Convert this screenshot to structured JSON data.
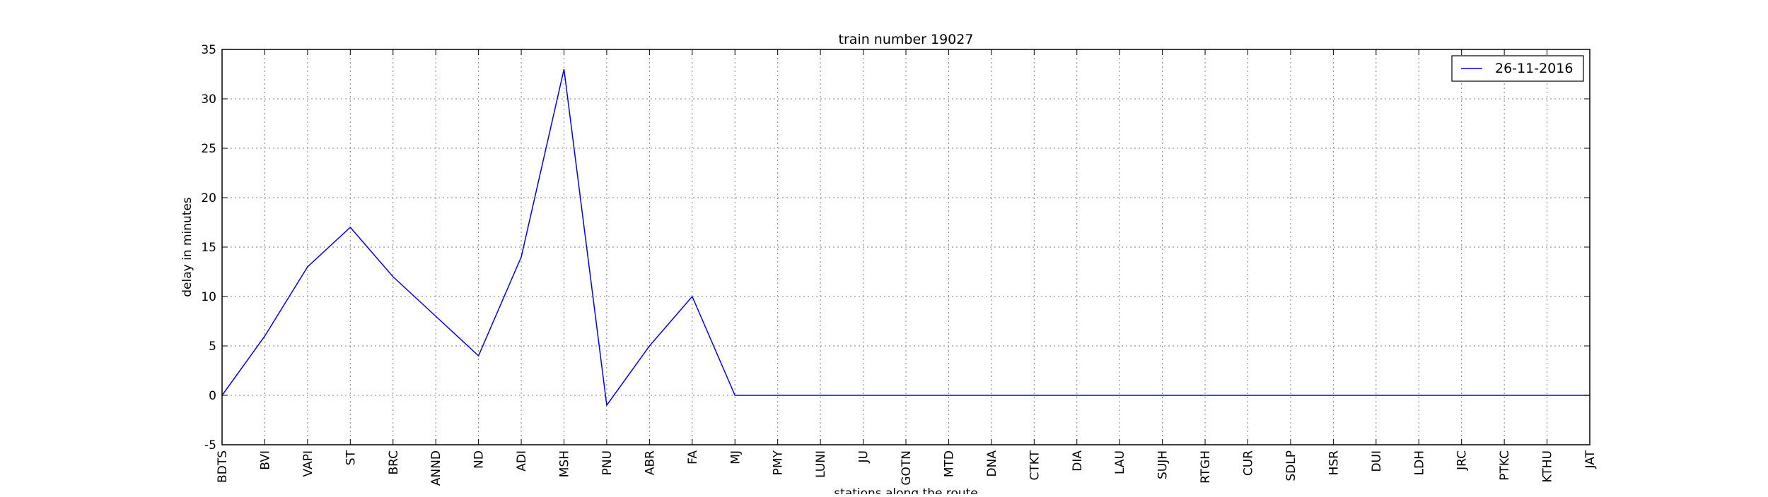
{
  "chart_data": {
    "type": "line",
    "title": "train number 19027",
    "xlabel": "stations along the route",
    "ylabel": "delay in minutes",
    "categories": [
      "BDTS",
      "BVI",
      "VAPI",
      "ST",
      "BRC",
      "ANND",
      "ND",
      "ADI",
      "MSH",
      "PNU",
      "ABR",
      "FA",
      "MJ",
      "PMY",
      "LUNI",
      "JU",
      "GOTN",
      "MTD",
      "DNA",
      "CTKT",
      "DIA",
      "LAU",
      "SUJH",
      "RTGH",
      "CUR",
      "SDLP",
      "HSR",
      "DUI",
      "LDH",
      "JRC",
      "PTKC",
      "KTHU",
      "JAT"
    ],
    "series": [
      {
        "name": "26-11-2016",
        "color": "#0000ff",
        "values": [
          0,
          6,
          13,
          17,
          12,
          8,
          4,
          14,
          33,
          -1,
          5,
          10,
          0,
          0,
          0,
          0,
          0,
          0,
          0,
          0,
          0,
          0,
          0,
          0,
          0,
          0,
          0,
          0,
          0,
          0,
          0,
          0,
          0
        ]
      }
    ],
    "ylim": [
      -5,
      35
    ],
    "yticks": [
      -5,
      0,
      5,
      10,
      15,
      20,
      25,
      30,
      35
    ],
    "grid": true,
    "legend_position": "top-right"
  }
}
